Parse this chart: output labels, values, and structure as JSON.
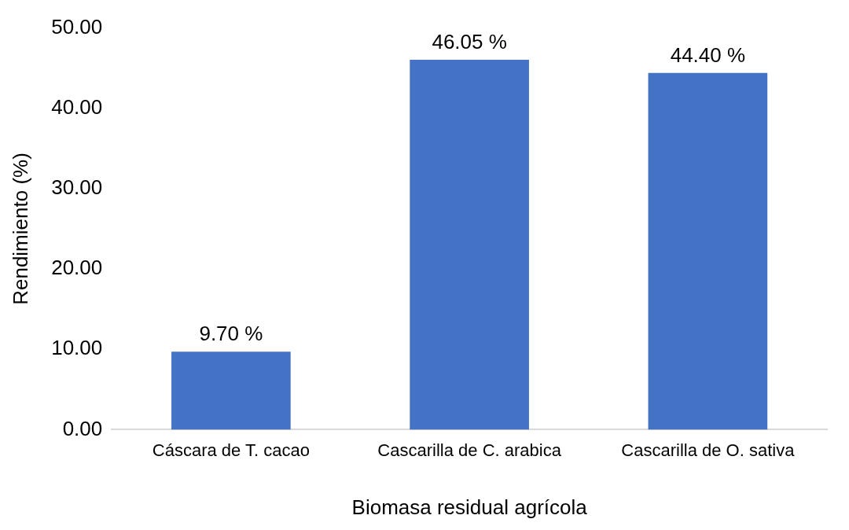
{
  "chart_data": {
    "type": "bar",
    "xlabel": "Biomasa residual agrícola",
    "ylabel": "Rendimiento (%)",
    "categories": [
      "Cáscara de T. cacao",
      "Cascarilla de C. arabica",
      "Cascarilla de O. sativa"
    ],
    "values": [
      9.7,
      46.05,
      44.4
    ],
    "color": "#4472c4",
    "value_labels": [
      "9.70 %",
      "46.05 %",
      "44.40 %"
    ],
    "ylim": [
      0,
      50
    ],
    "yticks": [
      {
        "value": 0,
        "label": "0.00"
      },
      {
        "value": 10,
        "label": "10.00"
      },
      {
        "value": 20,
        "label": "20.00"
      },
      {
        "value": 30,
        "label": "30.00"
      },
      {
        "value": 40,
        "label": "40.00"
      },
      {
        "value": 50,
        "label": "50.00"
      }
    ],
    "grid": false,
    "legend": false
  }
}
